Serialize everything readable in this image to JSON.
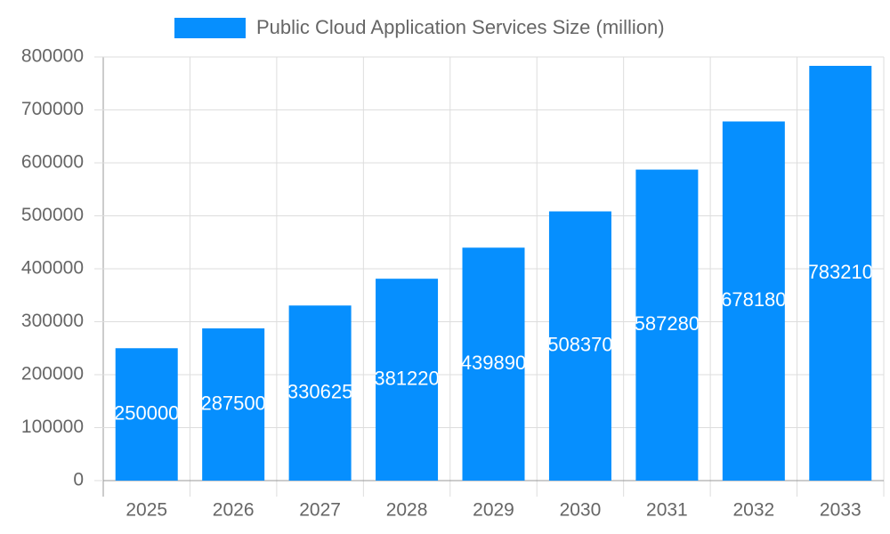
{
  "chart_data": {
    "type": "bar",
    "categories": [
      "2025",
      "2026",
      "2027",
      "2028",
      "2029",
      "2030",
      "2031",
      "2032",
      "2033"
    ],
    "series": [
      {
        "name": "Public Cloud Application Services Size (million)",
        "color": "#068ffe",
        "values": [
          250000,
          287500,
          330625,
          381220,
          439890,
          508370,
          587280,
          678180,
          783210
        ]
      }
    ],
    "ylim": [
      0,
      800000
    ],
    "yticks": [
      0,
      100000,
      200000,
      300000,
      400000,
      500000,
      600000,
      700000,
      800000
    ],
    "grid": true,
    "legend": "top",
    "data_labels": true
  }
}
